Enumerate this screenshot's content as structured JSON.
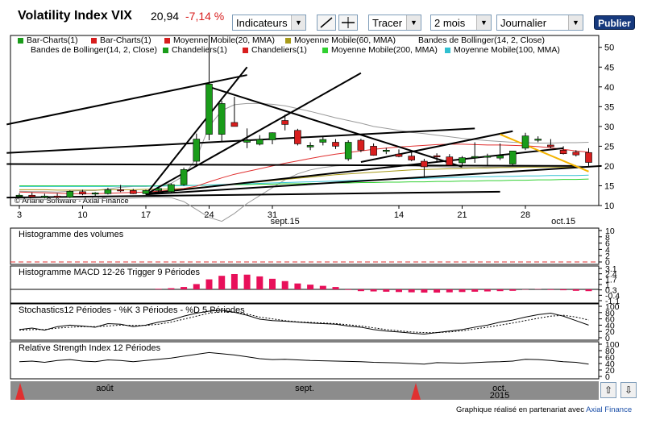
{
  "header": {
    "title": "Volatility Index VIX",
    "price": "20,94",
    "change": "-7,14 %",
    "change_color": "#d81e1e",
    "indicators_label": "Indicateurs",
    "draw_label": "Tracer",
    "period_value": "2 mois",
    "interval_value": "Journalier",
    "publish_label": "Publier"
  },
  "legend": [
    {
      "label": "Bar-Charts(1)",
      "color": "#1a9c1a"
    },
    {
      "label": "Bar-Charts(1)",
      "color": "#d81e1e"
    },
    {
      "label": "Moyenne Mobile(20, MMA)",
      "color": "#d81e1e"
    },
    {
      "label": "Moyenne Mobile(60, MMA)",
      "color": "#a89b1a"
    },
    {
      "label": "Bandes de Bollinger(14, 2, Close)",
      "color": ""
    },
    {
      "label": "Bandes de Bollinger(14, 2, Close)",
      "color": ""
    },
    {
      "label": "Chandeliers(1)",
      "color": "#1a9c1a"
    },
    {
      "label": "Chandeliers(1)",
      "color": "#d81e1e"
    },
    {
      "label": "Moyenne Mobile(200, MMA)",
      "color": "#30d030"
    },
    {
      "label": "Moyenne Mobile(100, MMA)",
      "color": "#30c0d0"
    }
  ],
  "chart_data": {
    "type": "candlestick",
    "watermark": "© Ariane Software - Axial Finance",
    "y_ticks": [
      "50",
      "45",
      "40",
      "35",
      "30",
      "25",
      "20",
      "15",
      "10"
    ],
    "ylim": [
      10,
      53
    ],
    "x_ticks": [
      {
        "label": "3",
        "i": 0
      },
      {
        "label": "10",
        "i": 5
      },
      {
        "label": "17",
        "i": 10
      },
      {
        "label": "24",
        "i": 15
      },
      {
        "label": "31",
        "i": 20
      },
      {
        "label": "14",
        "i": 30
      },
      {
        "label": "21",
        "i": 35
      },
      {
        "label": "28",
        "i": 40
      }
    ],
    "x_month_labels": [
      {
        "label": "sept.15",
        "i": 21
      },
      {
        "label": "oct.15",
        "i": 43
      }
    ],
    "candles": [
      {
        "o": 12.3,
        "h": 13.1,
        "l": 11.9,
        "c": 12.6
      },
      {
        "o": 12.6,
        "h": 13.3,
        "l": 12.0,
        "c": 12.2
      },
      {
        "o": 12.2,
        "h": 13.0,
        "l": 11.8,
        "c": 12.4
      },
      {
        "o": 12.4,
        "h": 13.1,
        "l": 12.0,
        "c": 12.3
      },
      {
        "o": 12.1,
        "h": 13.8,
        "l": 11.9,
        "c": 13.6
      },
      {
        "o": 13.5,
        "h": 14.0,
        "l": 12.6,
        "c": 12.9
      },
      {
        "o": 12.9,
        "h": 13.4,
        "l": 12.3,
        "c": 13.2
      },
      {
        "o": 13.0,
        "h": 14.5,
        "l": 12.8,
        "c": 14.0
      },
      {
        "o": 14.0,
        "h": 15.2,
        "l": 13.4,
        "c": 13.7
      },
      {
        "o": 13.8,
        "h": 14.2,
        "l": 12.9,
        "c": 13.0
      },
      {
        "o": 13.0,
        "h": 14.0,
        "l": 12.7,
        "c": 13.8
      },
      {
        "o": 13.8,
        "h": 14.5,
        "l": 13.4,
        "c": 14.3
      },
      {
        "o": 13.5,
        "h": 15.6,
        "l": 13.3,
        "c": 15.3
      },
      {
        "o": 15.3,
        "h": 19.6,
        "l": 15.0,
        "c": 19.1
      },
      {
        "o": 21.2,
        "h": 28.2,
        "l": 19.8,
        "c": 26.8
      },
      {
        "o": 28.0,
        "h": 53.0,
        "l": 26.5,
        "c": 40.7
      },
      {
        "o": 28.0,
        "h": 36.5,
        "l": 26.0,
        "c": 35.8
      },
      {
        "o": 31.0,
        "h": 37.5,
        "l": 30.0,
        "c": 30.0
      },
      {
        "o": 26.0,
        "h": 29.5,
        "l": 24.5,
        "c": 26.5
      },
      {
        "o": 25.5,
        "h": 27.8,
        "l": 25.2,
        "c": 26.7
      },
      {
        "o": 26.6,
        "h": 28.5,
        "l": 25.5,
        "c": 28.4
      },
      {
        "o": 31.5,
        "h": 33.0,
        "l": 29.0,
        "c": 30.5
      },
      {
        "o": 29.0,
        "h": 29.4,
        "l": 25.2,
        "c": 25.6
      },
      {
        "o": 24.8,
        "h": 26.0,
        "l": 24.0,
        "c": 25.2
      },
      {
        "o": 26.0,
        "h": 27.5,
        "l": 25.2,
        "c": 26.7
      },
      {
        "o": 26.0,
        "h": 26.8,
        "l": 24.3,
        "c": 25.0
      },
      {
        "o": 21.8,
        "h": 26.5,
        "l": 21.3,
        "c": 26.0
      },
      {
        "o": 26.5,
        "h": 26.9,
        "l": 23.5,
        "c": 24.0
      },
      {
        "o": 25.0,
        "h": 25.7,
        "l": 22.6,
        "c": 22.7
      },
      {
        "o": 24.0,
        "h": 24.6,
        "l": 23.0,
        "c": 24.0
      },
      {
        "o": 23.0,
        "h": 24.2,
        "l": 22.2,
        "c": 22.4
      },
      {
        "o": 22.5,
        "h": 23.5,
        "l": 21.2,
        "c": 21.5
      },
      {
        "o": 21.2,
        "h": 21.8,
        "l": 17.0,
        "c": 19.8
      },
      {
        "o": 22.6,
        "h": 23.2,
        "l": 21.1,
        "c": 22.3
      },
      {
        "o": 22.3,
        "h": 23.0,
        "l": 20.1,
        "c": 20.2
      },
      {
        "o": 20.8,
        "h": 22.5,
        "l": 20.0,
        "c": 22.1
      },
      {
        "o": 22.2,
        "h": 26.0,
        "l": 20.8,
        "c": 22.4
      },
      {
        "o": 22.3,
        "h": 23.1,
        "l": 20.2,
        "c": 22.5
      },
      {
        "o": 22.0,
        "h": 25.7,
        "l": 21.5,
        "c": 22.6
      },
      {
        "o": 20.5,
        "h": 23.8,
        "l": 20.2,
        "c": 23.8
      },
      {
        "o": 24.5,
        "h": 28.4,
        "l": 24.0,
        "c": 27.6
      },
      {
        "o": 26.8,
        "h": 27.5,
        "l": 26.0,
        "c": 26.8
      },
      {
        "o": 25.3,
        "h": 26.8,
        "l": 24.5,
        "c": 24.9
      },
      {
        "o": 24.0,
        "h": 25.0,
        "l": 22.9,
        "c": 23.1
      },
      {
        "o": 23.5,
        "h": 24.0,
        "l": 22.4,
        "c": 22.8
      },
      {
        "o": 23.4,
        "h": 24.5,
        "l": 20.0,
        "c": 20.9
      }
    ],
    "ma20": [
      13.4,
      13.3,
      13.2,
      13.1,
      13.0,
      13.0,
      13.0,
      13.1,
      13.2,
      13.3,
      13.4,
      13.6,
      13.9,
      14.3,
      14.9,
      16.0,
      17.0,
      17.9,
      18.6,
      19.3,
      20.0,
      20.7,
      21.3,
      21.9,
      22.5,
      23.0,
      23.4,
      23.8,
      24.2,
      24.5,
      24.8,
      25.0,
      25.2,
      25.4,
      25.5,
      25.5,
      25.4,
      25.3,
      25.3,
      25.2,
      25.1,
      24.9,
      24.6,
      24.2,
      23.8,
      23.5
    ],
    "ma60": [
      14.0,
      14.0,
      14.0,
      13.9,
      13.9,
      13.9,
      13.9,
      14.0,
      14.0,
      14.0,
      14.1,
      14.1,
      14.2,
      14.3,
      14.5,
      14.8,
      15.1,
      15.4,
      15.7,
      16.0,
      16.3,
      16.6,
      16.9,
      17.2,
      17.5,
      17.8,
      18.0,
      18.2,
      18.4,
      18.6,
      18.8,
      19.0,
      19.1,
      19.2,
      19.3,
      19.4,
      19.5,
      19.5,
      19.6,
      19.6,
      19.7,
      19.7,
      19.7,
      19.7,
      19.7,
      19.7
    ],
    "ma100": [
      14.8,
      14.8,
      14.8,
      14.8,
      14.8,
      14.8,
      14.8,
      14.8,
      14.9,
      14.9,
      14.9,
      14.9,
      15.0,
      15.0,
      15.1,
      15.2,
      15.3,
      15.4,
      15.5,
      15.6,
      15.7,
      15.8,
      15.9,
      16.0,
      16.1,
      16.2,
      16.3,
      16.4,
      16.5,
      16.6,
      16.7,
      16.8,
      16.9,
      17.0,
      17.1,
      17.2,
      17.3,
      17.3,
      17.4,
      17.4,
      17.5,
      17.5,
      17.6,
      17.6,
      17.6,
      17.7
    ],
    "ma200": [
      15.0,
      15.0,
      15.0,
      15.0,
      15.0,
      15.0,
      15.0,
      15.0,
      15.0,
      15.0,
      15.0,
      15.0,
      15.1,
      15.1,
      15.1,
      15.2,
      15.2,
      15.3,
      15.3,
      15.4,
      15.4,
      15.5,
      15.5,
      15.6,
      15.6,
      15.7,
      15.7,
      15.8,
      15.8,
      15.9,
      15.9,
      16.0,
      16.0,
      16.1,
      16.1,
      16.2,
      16.2,
      16.3,
      16.3,
      16.4,
      16.4,
      16.5,
      16.5,
      16.6,
      16.6,
      16.7
    ],
    "bollinger_upper": [
      13.6,
      13.5,
      13.5,
      13.4,
      13.6,
      13.8,
      13.8,
      14.2,
      14.6,
      14.8,
      14.8,
      15.0,
      15.6,
      17.5,
      22,
      30,
      34,
      35.5,
      35.8,
      35.8,
      35.6,
      35.2,
      34.5,
      33.8,
      33.0,
      32.2,
      31.5,
      30.8,
      30.0,
      29.5,
      29.0,
      28.5,
      28.2,
      27.8,
      27.4,
      27.0,
      26.7,
      26.4,
      26.2,
      26.0,
      25.9,
      25.8,
      25.8,
      25.9,
      25.9,
      26.0
    ],
    "bollinger_lower": [
      11.6,
      11.6,
      11.5,
      11.5,
      11.5,
      11.6,
      11.7,
      11.8,
      11.8,
      11.9,
      12.0,
      12.1,
      12.0,
      11.0,
      9,
      7,
      6,
      8,
      10.5,
      12.5,
      14.5,
      16.5,
      18.0,
      19.0,
      19.6,
      20.0,
      20.2,
      20.3,
      20.3,
      20.3,
      20.3,
      20.2,
      19.8,
      19.8,
      19.7,
      19.6,
      19.6,
      19.7,
      19.7,
      19.8,
      19.8,
      19.9,
      20.0,
      20.0,
      20.0,
      19.8
    ],
    "trendlines": [
      {
        "x1": -1,
        "y1": 30.5,
        "x2": 18,
        "y2": 43.0,
        "color": "#000"
      },
      {
        "x1": 10,
        "y1": 12.8,
        "x2": 18,
        "y2": 45.0,
        "color": "#000"
      },
      {
        "x1": 10,
        "y1": 12.8,
        "x2": 27,
        "y2": 43.5,
        "color": "#000"
      },
      {
        "x1": 15,
        "y1": 40.0,
        "x2": 35,
        "y2": 19.8,
        "color": "#000"
      },
      {
        "x1": -1,
        "y1": 23.3,
        "x2": 36,
        "y2": 29.5,
        "color": "#000"
      },
      {
        "x1": -1,
        "y1": 20.5,
        "x2": 44,
        "y2": 20.0,
        "color": "#000"
      },
      {
        "x1": 10,
        "y1": 13.0,
        "x2": 43,
        "y2": 24.5,
        "color": "#000"
      },
      {
        "x1": 10,
        "y1": 12.8,
        "x2": 46,
        "y2": 20.0,
        "color": "#000"
      },
      {
        "x1": -1,
        "y1": 12.0,
        "x2": 38,
        "y2": 13.5,
        "color": "#000"
      },
      {
        "x1": 27,
        "y1": 21.0,
        "x2": 39,
        "y2": 28.8,
        "color": "#000"
      },
      {
        "x1": 38,
        "y1": 28.0,
        "x2": 45,
        "y2": 18.6,
        "color": "#f4b400"
      }
    ]
  },
  "volume_panel": {
    "title": "Histogramme des volumes",
    "y_ticks": [
      "10",
      "8",
      "6",
      "4",
      "2",
      "0"
    ]
  },
  "macd_panel": {
    "title": "Histogramme MACD 12-26   Trigger 9 Périodes",
    "y_ticks": [
      "3.1",
      "2.4",
      "1.7",
      "1",
      "0.3",
      "-0.4",
      "-1.1"
    ],
    "values": [
      0,
      0,
      0,
      0,
      0,
      0,
      0,
      0,
      0,
      0,
      0,
      0.1,
      0.2,
      0.4,
      0.9,
      1.7,
      2.3,
      2.6,
      2.5,
      2.2,
      1.8,
      1.4,
      1.0,
      0.8,
      0.6,
      0.4,
      -0.1,
      -0.3,
      -0.35,
      -0.4,
      -0.45,
      -0.5,
      -0.55,
      -0.55,
      -0.5,
      -0.45,
      -0.4,
      -0.35,
      -0.3,
      -0.25,
      -0.05,
      0.05,
      -0.1,
      -0.15,
      -0.25,
      -0.3
    ]
  },
  "stoch_panel": {
    "title": "Stochastics12 Périodes  -  %K 3 Périodes  -  %D 5 Périodes",
    "y_ticks": [
      "100",
      "80",
      "60",
      "40",
      "20",
      "0"
    ],
    "k": [
      30,
      35,
      28,
      40,
      45,
      42,
      38,
      50,
      48,
      40,
      45,
      55,
      62,
      75,
      85,
      92,
      95,
      88,
      78,
      65,
      60,
      58,
      55,
      52,
      50,
      48,
      42,
      38,
      30,
      25,
      22,
      18,
      15,
      20,
      25,
      30,
      38,
      45,
      55,
      62,
      72,
      80,
      85,
      75,
      60,
      45
    ],
    "d": [
      28,
      30,
      30,
      35,
      38,
      40,
      40,
      42,
      45,
      44,
      44,
      48,
      55,
      65,
      75,
      85,
      90,
      88,
      82,
      72,
      66,
      60,
      56,
      54,
      52,
      50,
      46,
      42,
      36,
      30,
      26,
      22,
      20,
      20,
      22,
      26,
      32,
      38,
      45,
      52,
      60,
      68,
      75,
      78,
      72,
      62
    ]
  },
  "rsi_panel": {
    "title": "Relative Strength Index 12 Périodes",
    "y_ticks": [
      "100",
      "80",
      "60",
      "40",
      "20",
      "0"
    ],
    "values": [
      48,
      50,
      46,
      52,
      55,
      50,
      48,
      54,
      52,
      48,
      52,
      56,
      60,
      66,
      72,
      78,
      74,
      70,
      64,
      58,
      55,
      56,
      54,
      52,
      51,
      50,
      49,
      48,
      46,
      45,
      44,
      42,
      40,
      45,
      44,
      43,
      45,
      47,
      48,
      50,
      56,
      55,
      52,
      48,
      46,
      40
    ]
  },
  "nav": {
    "months": [
      "août",
      "sept.",
      "oct."
    ],
    "year": "2015",
    "up_arrow": "⇧",
    "down_arrow": "⇩"
  },
  "footer": {
    "credit_text": "Graphique réalisé en partenariat avec ",
    "credit_link": "Axial Finance"
  }
}
